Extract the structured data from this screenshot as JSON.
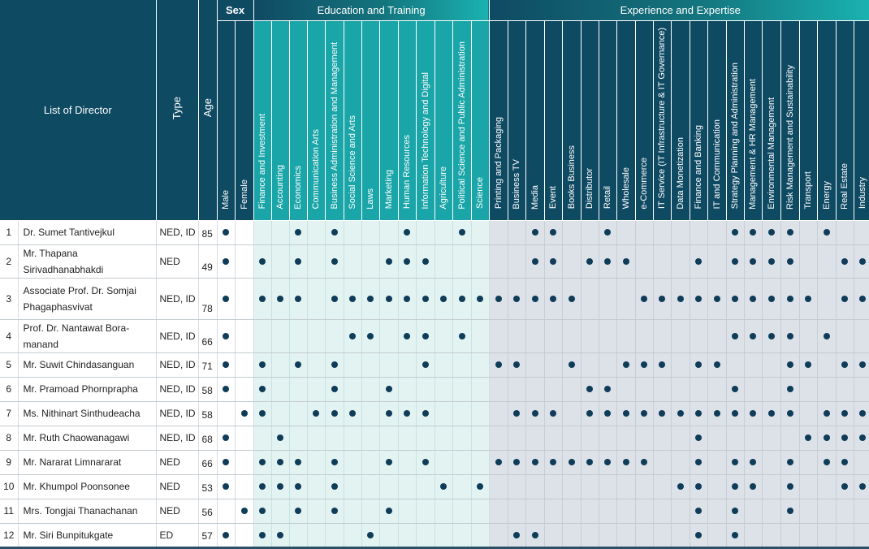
{
  "headers": {
    "list_of_director": "List of Director",
    "type": "Type",
    "age": "Age",
    "sex_group": "Sex",
    "education_group": "Education and Training",
    "experience_group": "Experience and Expertise"
  },
  "sex_columns": [
    "Male",
    "Female"
  ],
  "education_columns": [
    "Finance and Investment",
    "Accounting",
    "Economics",
    "Communication Arts",
    "Business Administration and Management",
    "Social Science and Arts",
    "Laws",
    "Marketing",
    "Human Resources",
    "Information Technology and Digital",
    "Agriculture",
    "Political Science and Public Administration",
    "Science"
  ],
  "experience_columns": [
    "Printing and Packaging",
    "Business TV",
    "Media",
    "Event",
    "Books Business",
    "Distributor",
    "Retail",
    "Wholesale",
    "e-Commerce",
    "IT Service (IT Infrastructure & IT Governance)",
    "Data Monetization",
    "Finance and Banking",
    "IT and Communication",
    "Strategy Planning and Administration",
    "Management & HR Management",
    "Environmental Management",
    "Risk Management and Sustainability",
    "Transport",
    "Energy",
    "Real Estate",
    "Industry"
  ],
  "colors": {
    "navy": "#0f4a63",
    "teal": "#1aa5a8",
    "dot": "#0f3c58",
    "education_bg": "#e3f3f2",
    "experience_bg": "#dde1e8"
  },
  "directors": [
    {
      "no": "1",
      "name": "Dr. Sumet Tantivejkul",
      "type": "NED, ID",
      "age": "85",
      "sex": [
        1,
        0
      ],
      "edu": [
        0,
        0,
        1,
        0,
        1,
        0,
        0,
        0,
        1,
        0,
        0,
        1,
        0
      ],
      "exp": [
        0,
        0,
        1,
        1,
        0,
        0,
        1,
        0,
        0,
        0,
        0,
        0,
        0,
        1,
        1,
        1,
        1,
        0,
        1,
        0,
        0
      ]
    },
    {
      "no": "2",
      "name": "Mr. Thapana Sirivadhanabhakdi",
      "type": "NED",
      "age": "49",
      "sex": [
        1,
        0
      ],
      "edu": [
        1,
        0,
        1,
        0,
        1,
        0,
        0,
        1,
        1,
        1,
        0,
        0,
        0
      ],
      "exp": [
        0,
        0,
        1,
        1,
        0,
        1,
        1,
        1,
        0,
        0,
        0,
        1,
        0,
        1,
        1,
        1,
        1,
        0,
        0,
        1,
        1
      ]
    },
    {
      "no": "3",
      "name": "Associate Prof. Dr. Somjai Phagaphasvivat",
      "type": "NED, ID",
      "age": "78",
      "sex": [
        1,
        0
      ],
      "edu": [
        1,
        1,
        1,
        0,
        1,
        1,
        1,
        1,
        1,
        1,
        1,
        1,
        1
      ],
      "exp": [
        1,
        1,
        1,
        1,
        1,
        0,
        0,
        0,
        1,
        1,
        1,
        1,
        1,
        1,
        1,
        1,
        1,
        1,
        0,
        1,
        1
      ]
    },
    {
      "no": "4",
      "name": "Prof. Dr. Nantawat Bora-manand",
      "type": "NED, ID",
      "age": "66",
      "sex": [
        1,
        0
      ],
      "edu": [
        0,
        0,
        0,
        0,
        0,
        1,
        1,
        0,
        1,
        1,
        0,
        1,
        0
      ],
      "exp": [
        0,
        0,
        0,
        0,
        0,
        0,
        0,
        0,
        0,
        0,
        0,
        0,
        0,
        1,
        1,
        1,
        1,
        0,
        1,
        0,
        0
      ]
    },
    {
      "no": "5",
      "name": "Mr. Suwit Chindasanguan",
      "type": "NED, ID",
      "age": "71",
      "sex": [
        1,
        0
      ],
      "edu": [
        1,
        0,
        1,
        0,
        1,
        0,
        0,
        0,
        0,
        1,
        0,
        0,
        0
      ],
      "exp": [
        1,
        1,
        0,
        0,
        1,
        0,
        0,
        1,
        1,
        1,
        0,
        1,
        1,
        0,
        0,
        0,
        1,
        1,
        0,
        1,
        1
      ]
    },
    {
      "no": "6",
      "name": "Mr. Pramoad Phornprapha",
      "type": "NED, ID",
      "age": "58",
      "sex": [
        1,
        0
      ],
      "edu": [
        1,
        0,
        0,
        0,
        1,
        0,
        0,
        1,
        0,
        0,
        0,
        0,
        0
      ],
      "exp": [
        0,
        0,
        0,
        0,
        0,
        1,
        1,
        0,
        0,
        0,
        0,
        0,
        0,
        1,
        0,
        0,
        1,
        0,
        0,
        0,
        0
      ]
    },
    {
      "no": "7",
      "name": "Ms. Nithinart Sinthudeacha",
      "type": "NED, ID",
      "age": "58",
      "sex": [
        0,
        1
      ],
      "edu": [
        1,
        0,
        0,
        1,
        1,
        1,
        0,
        1,
        1,
        1,
        0,
        0,
        0
      ],
      "exp": [
        0,
        1,
        1,
        1,
        0,
        1,
        1,
        1,
        1,
        1,
        1,
        1,
        1,
        1,
        1,
        1,
        1,
        0,
        1,
        1,
        1
      ]
    },
    {
      "no": "8",
      "name": "Mr. Ruth Chaowanagawi",
      "type": "NED, ID",
      "age": "68",
      "sex": [
        1,
        0
      ],
      "edu": [
        0,
        1,
        0,
        0,
        0,
        0,
        0,
        0,
        0,
        0,
        0,
        0,
        0
      ],
      "exp": [
        0,
        0,
        0,
        0,
        0,
        0,
        0,
        0,
        0,
        0,
        0,
        1,
        0,
        0,
        0,
        0,
        0,
        1,
        1,
        1,
        1
      ]
    },
    {
      "no": "9",
      "name": "Mr. Nararat Limnararat",
      "type": "NED",
      "age": "66",
      "sex": [
        1,
        0
      ],
      "edu": [
        1,
        1,
        1,
        0,
        1,
        0,
        0,
        1,
        0,
        1,
        0,
        0,
        0
      ],
      "exp": [
        1,
        1,
        1,
        1,
        1,
        1,
        1,
        1,
        1,
        0,
        0,
        1,
        0,
        1,
        1,
        0,
        1,
        0,
        1,
        1,
        0
      ]
    },
    {
      "no": "10",
      "name": "Mr. Khumpol Poonsonee",
      "type": "NED",
      "age": "53",
      "sex": [
        1,
        0
      ],
      "edu": [
        1,
        1,
        1,
        0,
        1,
        0,
        0,
        0,
        0,
        0,
        1,
        0,
        1
      ],
      "exp": [
        0,
        0,
        0,
        0,
        0,
        0,
        0,
        0,
        0,
        0,
        1,
        1,
        0,
        1,
        1,
        0,
        1,
        0,
        0,
        1,
        1
      ]
    },
    {
      "no": "11",
      "name": "Mrs. Tongjai Thanachanan",
      "type": "NED",
      "age": "56",
      "sex": [
        0,
        1
      ],
      "edu": [
        1,
        0,
        1,
        0,
        1,
        0,
        0,
        1,
        0,
        0,
        0,
        0,
        0
      ],
      "exp": [
        0,
        0,
        0,
        0,
        0,
        0,
        0,
        0,
        0,
        0,
        0,
        1,
        0,
        1,
        0,
        0,
        1,
        0,
        0,
        0,
        0
      ]
    },
    {
      "no": "12",
      "name": "Mr. Siri Bunpitukgate",
      "type": "ED",
      "age": "57",
      "sex": [
        1,
        0
      ],
      "edu": [
        1,
        1,
        0,
        0,
        0,
        0,
        1,
        0,
        0,
        0,
        0,
        0,
        0
      ],
      "exp": [
        0,
        1,
        1,
        0,
        0,
        0,
        0,
        0,
        0,
        0,
        0,
        1,
        0,
        1,
        0,
        0,
        0,
        0,
        0,
        0,
        0
      ]
    }
  ]
}
